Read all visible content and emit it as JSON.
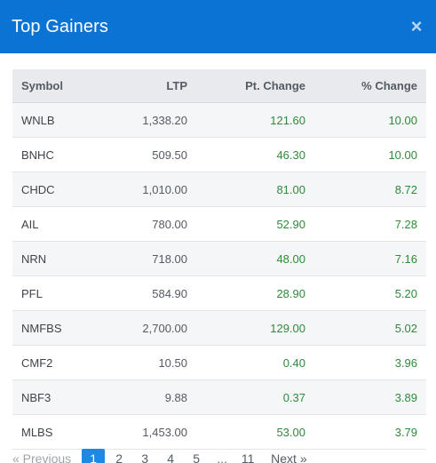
{
  "header": {
    "title": "Top Gainers",
    "close_symbol": "×"
  },
  "table": {
    "columns": [
      "Symbol",
      "LTP",
      "Pt. Change",
      "% Change"
    ],
    "rows": [
      {
        "symbol": "WNLB",
        "ltp": "1,338.20",
        "pt_change": "121.60",
        "pct_change": "10.00"
      },
      {
        "symbol": "BNHC",
        "ltp": "509.50",
        "pt_change": "46.30",
        "pct_change": "10.00"
      },
      {
        "symbol": "CHDC",
        "ltp": "1,010.00",
        "pt_change": "81.00",
        "pct_change": "8.72"
      },
      {
        "symbol": "AIL",
        "ltp": "780.00",
        "pt_change": "52.90",
        "pct_change": "7.28"
      },
      {
        "symbol": "NRN",
        "ltp": "718.00",
        "pt_change": "48.00",
        "pct_change": "7.16"
      },
      {
        "symbol": "PFL",
        "ltp": "584.90",
        "pt_change": "28.90",
        "pct_change": "5.20"
      },
      {
        "symbol": "NMFBS",
        "ltp": "2,700.00",
        "pt_change": "129.00",
        "pct_change": "5.02"
      },
      {
        "symbol": "CMF2",
        "ltp": "10.50",
        "pt_change": "0.40",
        "pct_change": "3.96"
      },
      {
        "symbol": "NBF3",
        "ltp": "9.88",
        "pt_change": "0.37",
        "pct_change": "3.89"
      },
      {
        "symbol": "MLBS",
        "ltp": "1,453.00",
        "pt_change": "53.00",
        "pct_change": "3.79"
      }
    ]
  },
  "pagination": {
    "previous_label": "« Previous",
    "pages": [
      "1",
      "2",
      "3",
      "4",
      "5"
    ],
    "ellipsis": "...",
    "last_page": "11",
    "next_label": "Next »",
    "active_page": "1"
  },
  "colors": {
    "header_bg": "#0a73d4",
    "positive": "#2e8b3a",
    "active_page": "#1e88e5"
  }
}
